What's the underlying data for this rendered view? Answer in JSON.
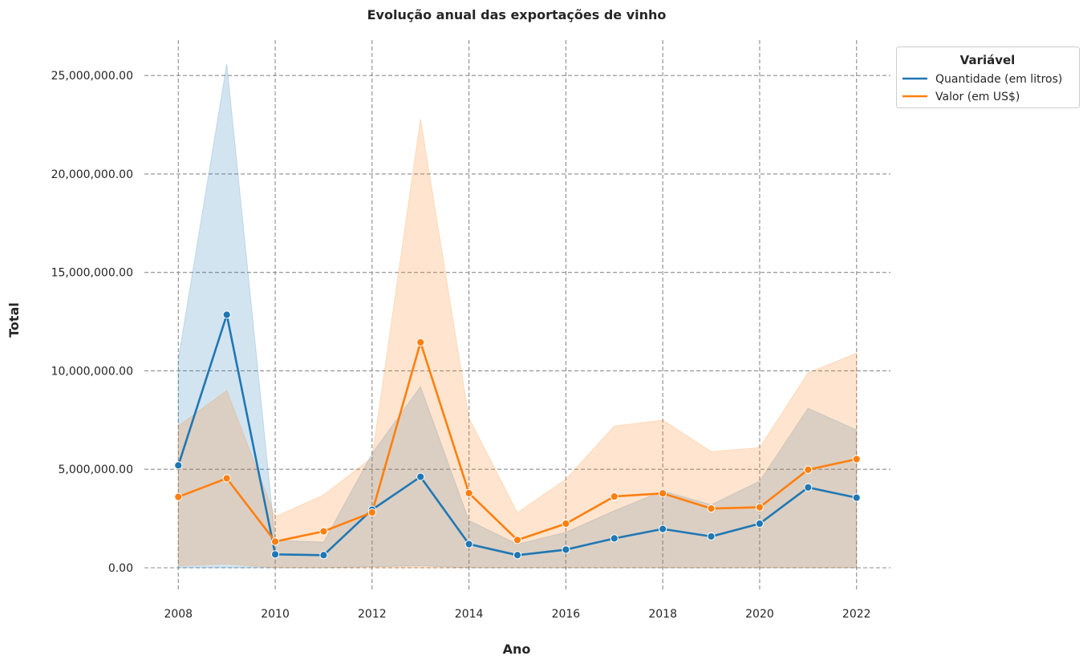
{
  "chart_data": {
    "type": "line",
    "title": "Evolução anual das exportações de vinho",
    "xlabel": "Ano",
    "ylabel": "Total",
    "xlim": [
      2007.3,
      2022.7
    ],
    "ylim": [
      -1100000,
      26800000
    ],
    "x_ticks": [
      2008,
      2010,
      2012,
      2014,
      2016,
      2018,
      2020,
      2022
    ],
    "x_tick_labels": [
      "2008",
      "2010",
      "2012",
      "2014",
      "2016",
      "2018",
      "2020",
      "2022"
    ],
    "y_ticks": [
      0,
      5000000,
      10000000,
      15000000,
      20000000,
      25000000
    ],
    "y_tick_labels": [
      "0.00",
      "5,000,000.00",
      "10,000,000.00",
      "15,000,000.00",
      "20,000,000.00",
      "25,000,000.00"
    ],
    "grid": true,
    "legend": {
      "title": "Variável",
      "placement": "outside upper-right",
      "entries": [
        "Quantidade (em litros)",
        "Valor (em US$)"
      ]
    },
    "x": [
      2008,
      2009,
      2010,
      2011,
      2012,
      2013,
      2014,
      2015,
      2016,
      2017,
      2018,
      2019,
      2020,
      2021,
      2022
    ],
    "series": [
      {
        "name": "Quantidade (em litros)",
        "color": "#1f77b4",
        "values": [
          5200000,
          12850000,
          680000,
          640000,
          2950000,
          4620000,
          1200000,
          640000,
          920000,
          1490000,
          1970000,
          1590000,
          2240000,
          4080000,
          3560000
        ],
        "ci_lower": [
          0,
          0,
          0,
          0,
          50000,
          100000,
          0,
          0,
          0,
          0,
          0,
          0,
          0,
          0,
          0
        ],
        "ci_upper": [
          10600000,
          25600000,
          1400000,
          1300000,
          5800000,
          9200000,
          2400000,
          1200000,
          1800000,
          2900000,
          3900000,
          3200000,
          4400000,
          8100000,
          7000000
        ]
      },
      {
        "name": "Valor (em US$)",
        "color": "#ff7f0e",
        "values": [
          3600000,
          4540000,
          1330000,
          1850000,
          2810000,
          11450000,
          3790000,
          1410000,
          2240000,
          3620000,
          3780000,
          3010000,
          3070000,
          4980000,
          5520000
        ],
        "ci_lower": [
          100000,
          200000,
          0,
          0,
          0,
          0,
          0,
          0,
          0,
          0,
          0,
          0,
          0,
          0,
          0
        ],
        "ci_upper": [
          7200000,
          9000000,
          2600000,
          3700000,
          5600000,
          22800000,
          7600000,
          2800000,
          4500000,
          7200000,
          7500000,
          5900000,
          6100000,
          9900000,
          10900000
        ]
      }
    ]
  }
}
